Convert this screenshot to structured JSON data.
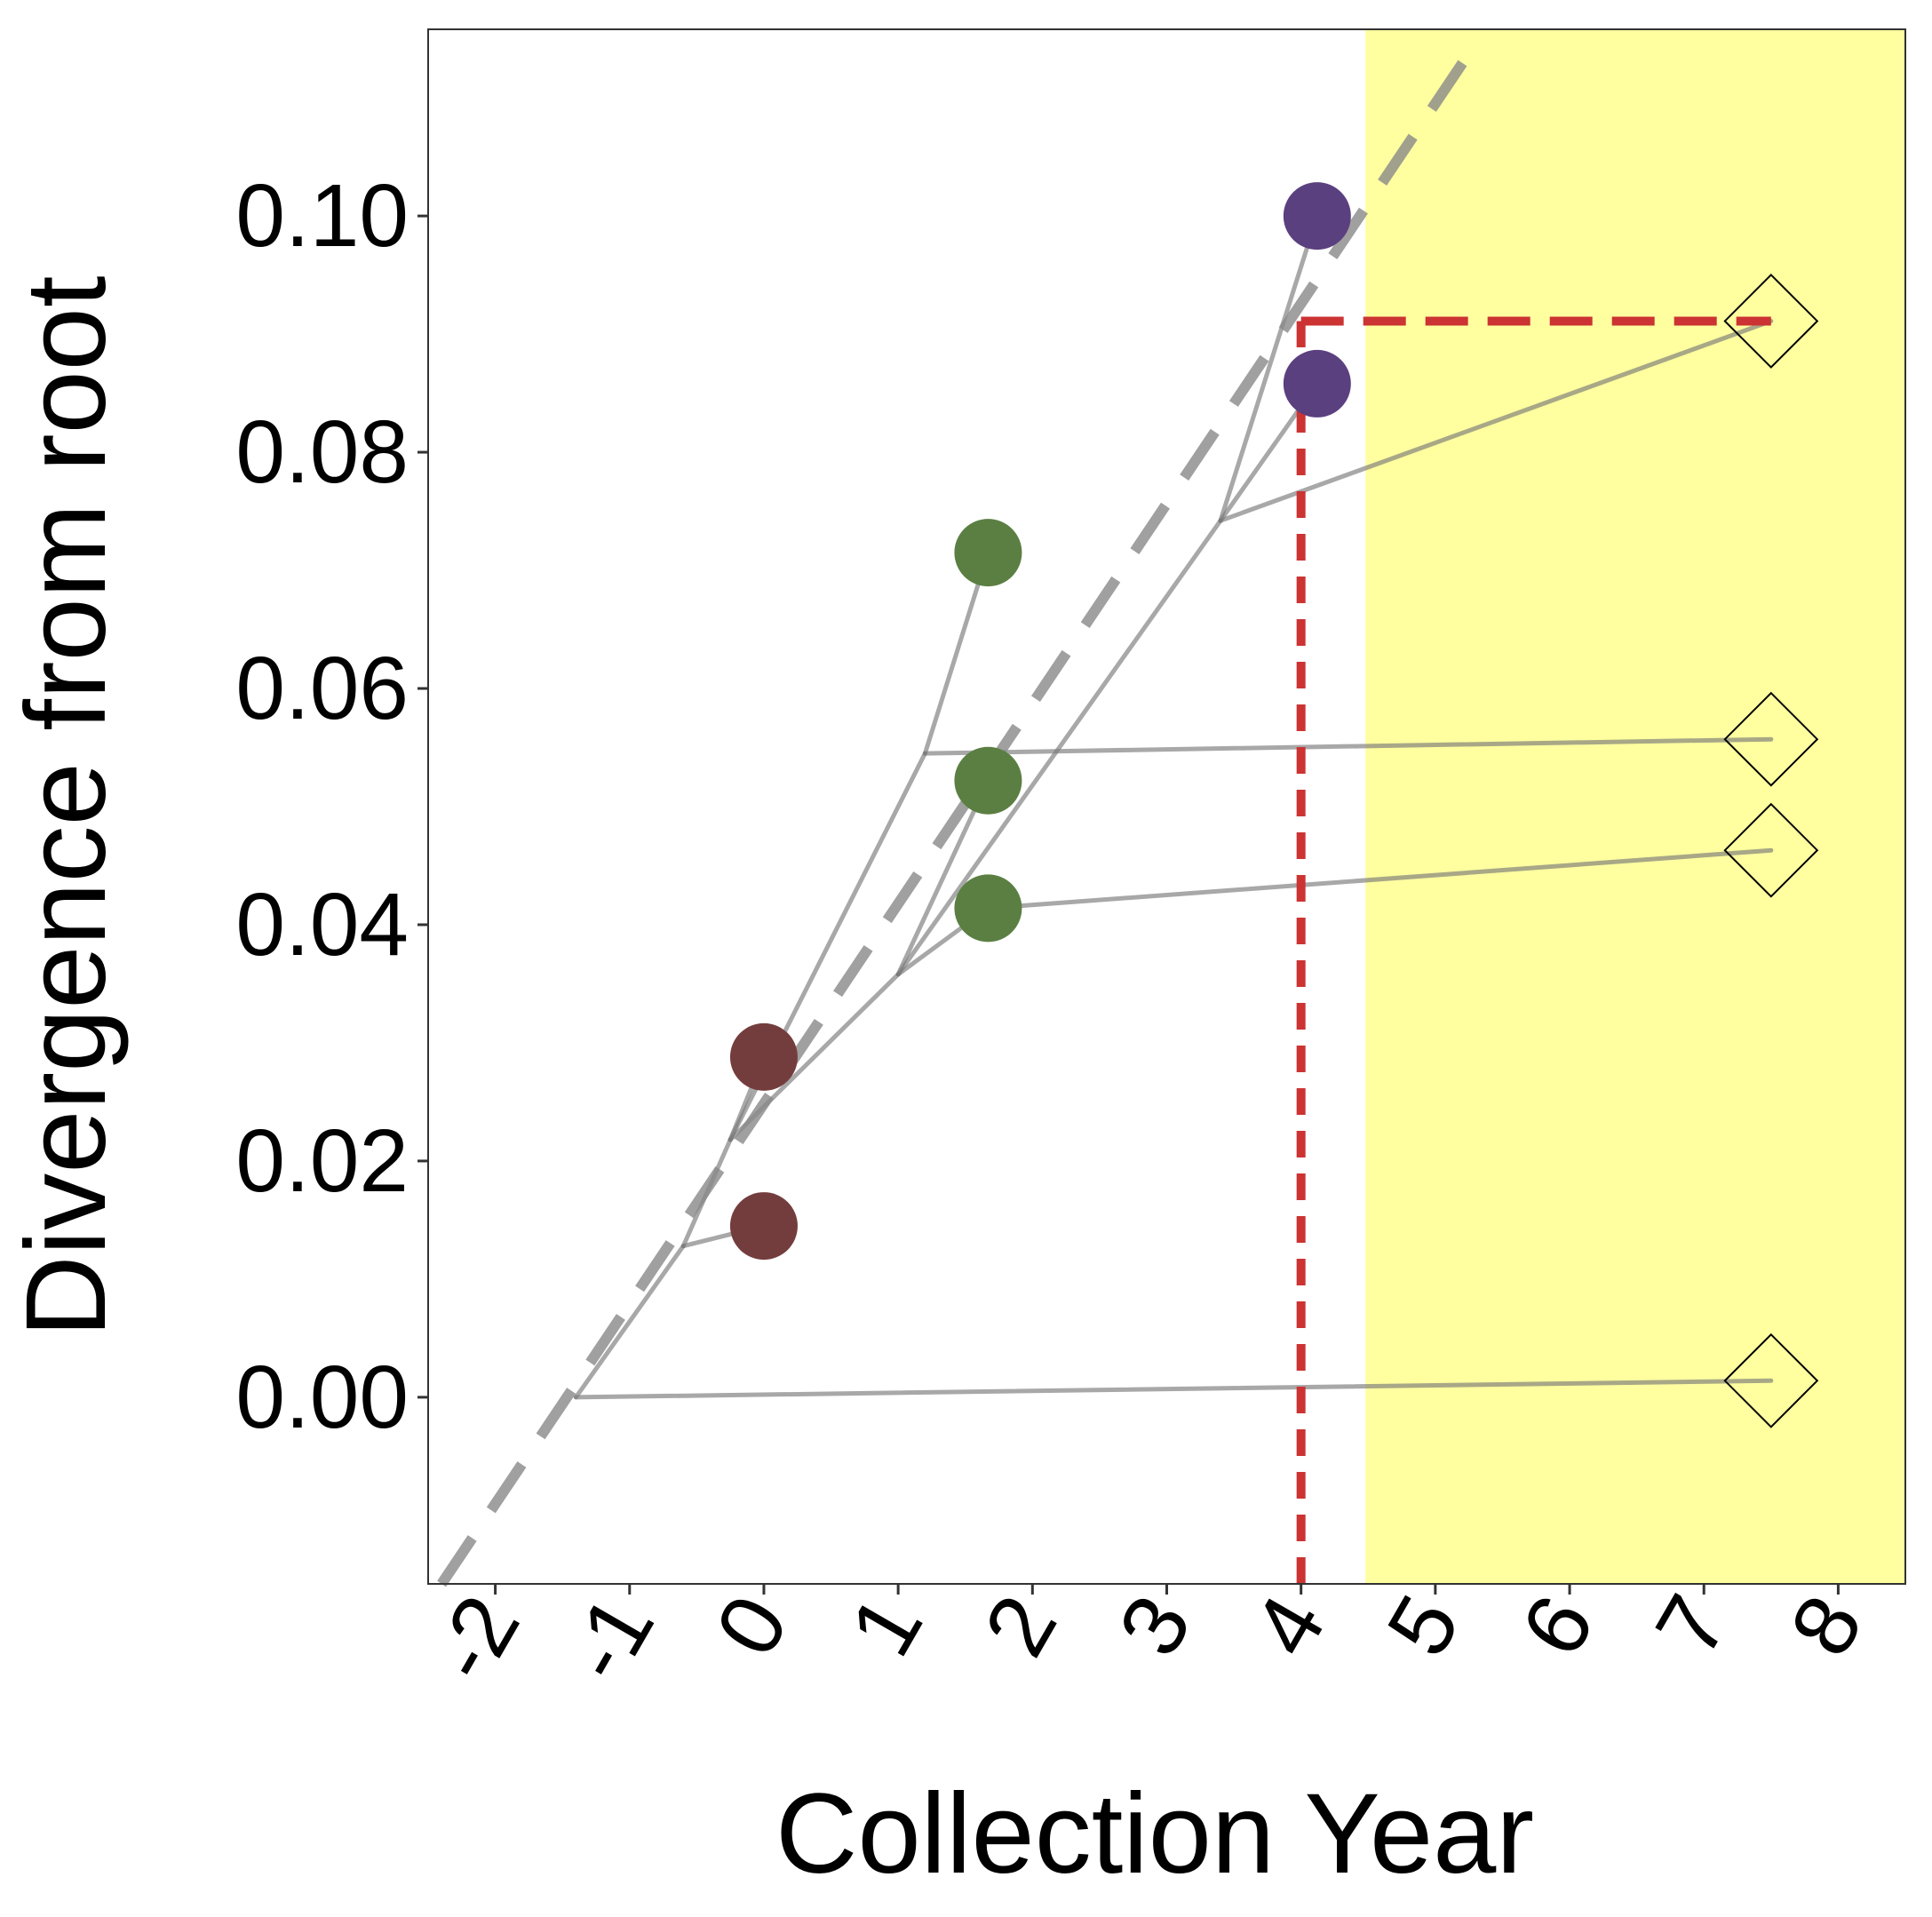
{
  "chart_data": {
    "type": "scatter",
    "xlabel": "Collection Year",
    "ylabel": "Divergence from root",
    "xlim": [
      -2.5,
      8.5
    ],
    "ylim": [
      -0.0158,
      0.1158
    ],
    "x_ticks": [
      -2,
      -1,
      0,
      1,
      2,
      3,
      4,
      5,
      6,
      7,
      8
    ],
    "x_tick_labels": [
      "-2",
      "-1",
      "0",
      "1",
      "2",
      "3",
      "4",
      "5",
      "6",
      "7",
      "8"
    ],
    "y_ticks": [
      0.0,
      0.02,
      0.04,
      0.06,
      0.08,
      0.1
    ],
    "y_tick_labels": [
      "0.00",
      "0.02",
      "0.04",
      "0.06",
      "0.08",
      "0.10"
    ],
    "grid": false,
    "legend": "none",
    "highlight_region": {
      "x_from": 4.48,
      "x_to": 8.5,
      "color": "#ffffa0"
    },
    "regression_line": {
      "x": [
        -2.4,
        5.3
      ],
      "y": [
        -0.0158,
        0.1146
      ],
      "color": "#888888",
      "style": "dashed"
    },
    "projection": {
      "x": 4.0,
      "y": 0.0911,
      "x_end": 7.5,
      "color": "#cc3333",
      "style": "dashed"
    },
    "tree_edges": [
      {
        "x": [
          -1.4,
          7.5
        ],
        "y": [
          0.0,
          0.0014
        ]
      },
      {
        "x": [
          -1.4,
          -0.6
        ],
        "y": [
          0.0,
          0.0128
        ]
      },
      {
        "x": [
          -0.6,
          0.0
        ],
        "y": [
          0.0128,
          0.0145
        ]
      },
      {
        "x": [
          -0.6,
          -0.25
        ],
        "y": [
          0.0128,
          0.0218
        ]
      },
      {
        "x": [
          -0.25,
          0.0
        ],
        "y": [
          0.0218,
          0.0288
        ]
      },
      {
        "x": [
          -0.25,
          1.2
        ],
        "y": [
          0.0218,
          0.0545
        ]
      },
      {
        "x": [
          1.2,
          7.5
        ],
        "y": [
          0.0545,
          0.0557
        ]
      },
      {
        "x": [
          1.2,
          1.67
        ],
        "y": [
          0.0545,
          0.0715
        ]
      },
      {
        "x": [
          -0.25,
          1.0
        ],
        "y": [
          0.0218,
          0.0358
        ]
      },
      {
        "x": [
          1.0,
          1.67
        ],
        "y": [
          0.0358,
          0.0414
        ]
      },
      {
        "x": [
          1.67,
          7.5
        ],
        "y": [
          0.0414,
          0.0463
        ]
      },
      {
        "x": [
          1.0,
          1.67
        ],
        "y": [
          0.0358,
          0.0522
        ]
      },
      {
        "x": [
          1.0,
          3.4
        ],
        "y": [
          0.0358,
          0.0742
        ]
      },
      {
        "x": [
          3.4,
          7.5
        ],
        "y": [
          0.0742,
          0.0911
        ]
      },
      {
        "x": [
          3.4,
          4.12
        ],
        "y": [
          0.0742,
          0.1
        ]
      },
      {
        "x": [
          3.4,
          4.12
        ],
        "y": [
          0.0742,
          0.0858
        ]
      }
    ],
    "series": [
      {
        "marker": "circle",
        "color": "#743d3d",
        "points": [
          {
            "x": 0.0,
            "y": 0.0288
          },
          {
            "x": 0.0,
            "y": 0.0145
          }
        ]
      },
      {
        "marker": "circle",
        "color": "#5b7f43",
        "points": [
          {
            "x": 1.67,
            "y": 0.0715
          },
          {
            "x": 1.67,
            "y": 0.0522
          },
          {
            "x": 1.67,
            "y": 0.0414
          }
        ]
      },
      {
        "marker": "circle",
        "color": "#5b4080",
        "points": [
          {
            "x": 4.12,
            "y": 0.1
          },
          {
            "x": 4.12,
            "y": 0.0858
          }
        ]
      },
      {
        "marker": "diamond-open",
        "color": "#000000",
        "points": [
          {
            "x": 7.5,
            "y": 0.0911
          },
          {
            "x": 7.5,
            "y": 0.0557
          },
          {
            "x": 7.5,
            "y": 0.0463
          },
          {
            "x": 7.5,
            "y": 0.0014
          }
        ]
      }
    ]
  }
}
